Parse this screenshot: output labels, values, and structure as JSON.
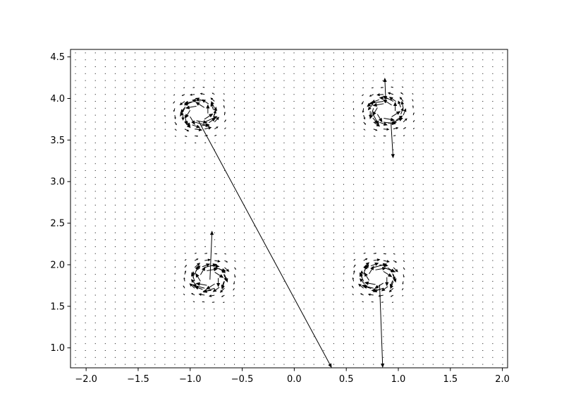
{
  "chart_data": {
    "type": "quiver",
    "title": "",
    "xlabel": "",
    "ylabel": "",
    "xlim": [
      -2.15,
      2.05
    ],
    "ylim": [
      0.76,
      4.59
    ],
    "grid": false,
    "x_ticks": [
      -2.0,
      -1.5,
      -1.0,
      -0.5,
      0.0,
      0.5,
      1.0,
      1.5,
      2.0
    ],
    "x_tick_labels": [
      "−2.0",
      "−1.5",
      "−1.0",
      "−0.5",
      "0.0",
      "0.5",
      "1.0",
      "1.5",
      "2.0"
    ],
    "y_ticks": [
      1.0,
      1.5,
      2.0,
      2.5,
      3.0,
      3.5,
      4.0,
      4.5
    ],
    "y_tick_labels": [
      "1.0",
      "1.5",
      "2.0",
      "2.5",
      "3.0",
      "3.5",
      "4.0",
      "4.5"
    ],
    "vortices": [
      {
        "x": -0.92,
        "y": 3.82,
        "circulation": 1
      },
      {
        "x": 0.88,
        "y": 3.85,
        "circulation": 1
      },
      {
        "x": -0.82,
        "y": 1.84,
        "circulation": -1
      },
      {
        "x": 0.8,
        "y": 1.85,
        "circulation": -1
      }
    ],
    "outlier_arrows": [
      {
        "x": -0.92,
        "y": 3.73,
        "u": 1.28,
        "v": -2.97
      },
      {
        "x": 0.93,
        "y": 3.7,
        "u": 0.02,
        "v": -0.42
      },
      {
        "x": 0.88,
        "y": 3.95,
        "u": -0.01,
        "v": 0.3
      },
      {
        "x": -0.81,
        "y": 1.82,
        "u": 0.02,
        "v": 0.59
      },
      {
        "x": 0.82,
        "y": 1.76,
        "u": 0.03,
        "v": -1.0
      }
    ]
  }
}
